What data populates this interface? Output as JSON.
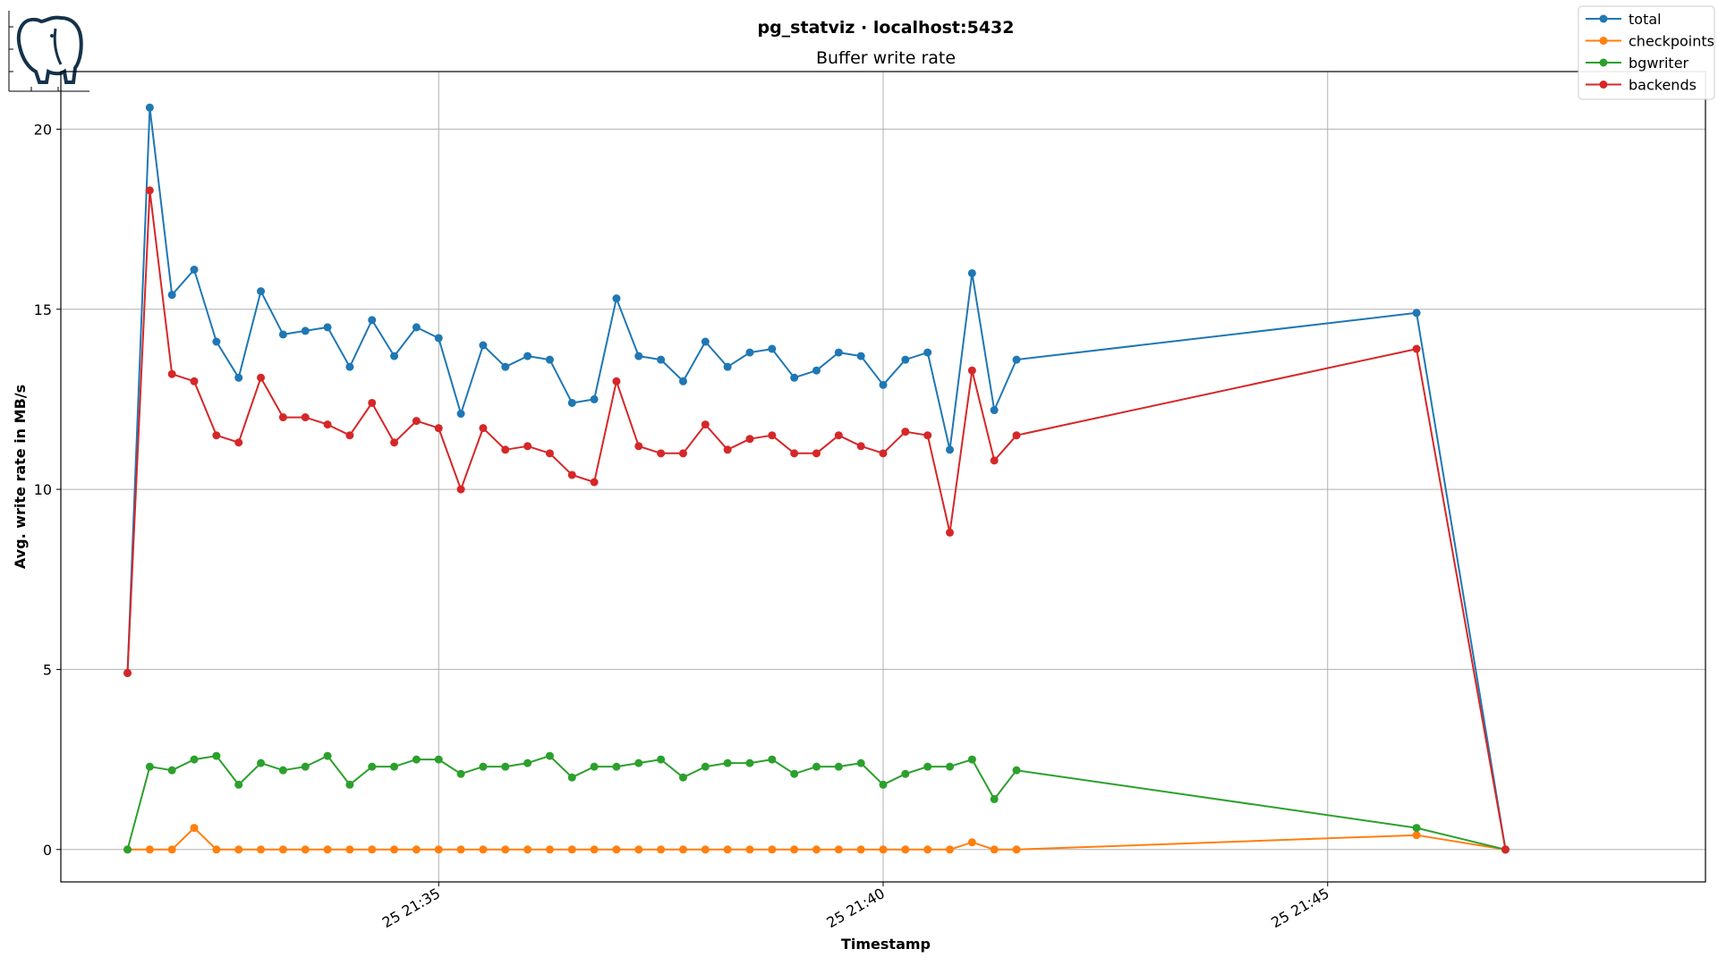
{
  "chart_data": {
    "type": "line",
    "title": "pg_statviz · localhost:5432",
    "subtitle": "Buffer write rate",
    "xlabel": "Timestamp",
    "ylabel": "Avg. write rate in MB/s",
    "ylim": [
      -0.9,
      21.6
    ],
    "xlim": [
      "25 21:30:45",
      "25 21:49:15"
    ],
    "x_ticks": [
      {
        "label": "25 21:35",
        "value": "25 21:35:00"
      },
      {
        "label": "25 21:40",
        "value": "25 21:40:00"
      },
      {
        "label": "25 21:45",
        "value": "25 21:45:00"
      }
    ],
    "y_ticks": [
      0,
      5,
      10,
      15,
      20
    ],
    "grid": true,
    "legend_position": "top-right",
    "x": [
      "25 21:31:30",
      "25 21:31:45",
      "25 21:32:00",
      "25 21:32:15",
      "25 21:32:30",
      "25 21:32:45",
      "25 21:33:00",
      "25 21:33:15",
      "25 21:33:30",
      "25 21:33:45",
      "25 21:34:00",
      "25 21:34:15",
      "25 21:34:30",
      "25 21:34:45",
      "25 21:35:00",
      "25 21:35:15",
      "25 21:35:30",
      "25 21:35:45",
      "25 21:36:00",
      "25 21:36:15",
      "25 21:36:30",
      "25 21:36:45",
      "25 21:37:00",
      "25 21:37:15",
      "25 21:37:30",
      "25 21:37:45",
      "25 21:38:00",
      "25 21:38:15",
      "25 21:38:30",
      "25 21:38:45",
      "25 21:39:00",
      "25 21:39:15",
      "25 21:39:30",
      "25 21:39:45",
      "25 21:40:00",
      "25 21:40:15",
      "25 21:40:30",
      "25 21:40:45",
      "25 21:41:00",
      "25 21:41:15",
      "25 21:41:30",
      "25 21:46:00",
      "25 21:47:00"
    ],
    "series": [
      {
        "name": "total",
        "color": "#1f77b4",
        "values": [
          4.9,
          20.6,
          15.4,
          16.1,
          14.1,
          13.1,
          15.5,
          14.3,
          14.4,
          14.5,
          13.4,
          14.7,
          13.7,
          14.5,
          14.2,
          12.1,
          14.0,
          13.4,
          13.7,
          13.6,
          12.4,
          12.5,
          15.3,
          13.7,
          13.6,
          13.0,
          14.1,
          13.4,
          13.8,
          13.9,
          13.1,
          13.3,
          13.8,
          13.7,
          12.9,
          13.6,
          13.8,
          11.1,
          16.0,
          12.2,
          13.6,
          14.9,
          0.0
        ]
      },
      {
        "name": "checkpoints",
        "color": "#ff7f0e",
        "values": [
          0.0,
          0.0,
          0.0,
          0.6,
          0.0,
          0.0,
          0.0,
          0.0,
          0.0,
          0.0,
          0.0,
          0.0,
          0.0,
          0.0,
          0.0,
          0.0,
          0.0,
          0.0,
          0.0,
          0.0,
          0.0,
          0.0,
          0.0,
          0.0,
          0.0,
          0.0,
          0.0,
          0.0,
          0.0,
          0.0,
          0.0,
          0.0,
          0.0,
          0.0,
          0.0,
          0.0,
          0.0,
          0.0,
          0.2,
          0.0,
          0.0,
          0.4,
          0.0
        ]
      },
      {
        "name": "bgwriter",
        "color": "#2ca02c",
        "values": [
          0.0,
          2.3,
          2.2,
          2.5,
          2.6,
          1.8,
          2.4,
          2.2,
          2.3,
          2.6,
          1.8,
          2.3,
          2.3,
          2.5,
          2.5,
          2.1,
          2.3,
          2.3,
          2.4,
          2.6,
          2.0,
          2.3,
          2.3,
          2.4,
          2.5,
          2.0,
          2.3,
          2.4,
          2.4,
          2.5,
          2.1,
          2.3,
          2.3,
          2.4,
          1.8,
          2.1,
          2.3,
          2.3,
          2.5,
          1.4,
          2.2,
          0.6,
          0.0
        ]
      },
      {
        "name": "backends",
        "color": "#d62728",
        "values": [
          4.9,
          18.3,
          13.2,
          13.0,
          11.5,
          11.3,
          13.1,
          12.0,
          12.0,
          11.8,
          11.5,
          12.4,
          11.3,
          11.9,
          11.7,
          10.0,
          11.7,
          11.1,
          11.2,
          11.0,
          10.4,
          10.2,
          13.0,
          11.2,
          11.0,
          11.0,
          11.8,
          11.1,
          11.4,
          11.5,
          11.0,
          11.0,
          11.5,
          11.2,
          11.0,
          11.6,
          11.5,
          8.8,
          13.3,
          10.8,
          11.5,
          13.9,
          0.0
        ]
      }
    ]
  },
  "logo": {
    "name": "postgres-elephant-logo"
  }
}
